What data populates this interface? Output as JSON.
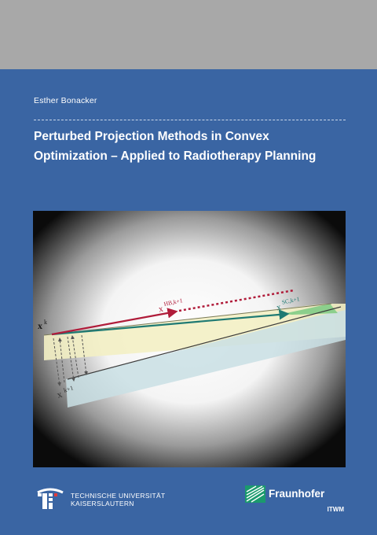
{
  "author": "Esther Bonacker",
  "title_lines": [
    "Perturbed Projection Methods in Convex",
    "Optimization – Applied to Radiotherapy Planning"
  ],
  "figure": {
    "labels": {
      "x_k": "x",
      "x_k_sup": "k",
      "hb_base": "x",
      "hb_sup": "HB,k+1",
      "sc_base": "x",
      "sc_sup": "SC,k+1",
      "xk1_base": "x",
      "xk1_sup": "k+1"
    },
    "colors": {
      "hb_arrow": "#b01c3a",
      "sc_arrow": "#1f7a73",
      "upper_band": "#f3efc4",
      "lower_band": "#c9dfe4",
      "green_region": "#8ccf8c"
    }
  },
  "logos": {
    "tuk_line1_a": "Technische",
    "tuk_line1_b": "Universität",
    "tuk_line2": "Kaiserslautern",
    "fraunhofer_name": "Fraunhofer",
    "fraunhofer_sub": "ITWM"
  },
  "colors": {
    "cover_blue": "#3a65a3",
    "top_band_gray": "#a8a8a8"
  }
}
